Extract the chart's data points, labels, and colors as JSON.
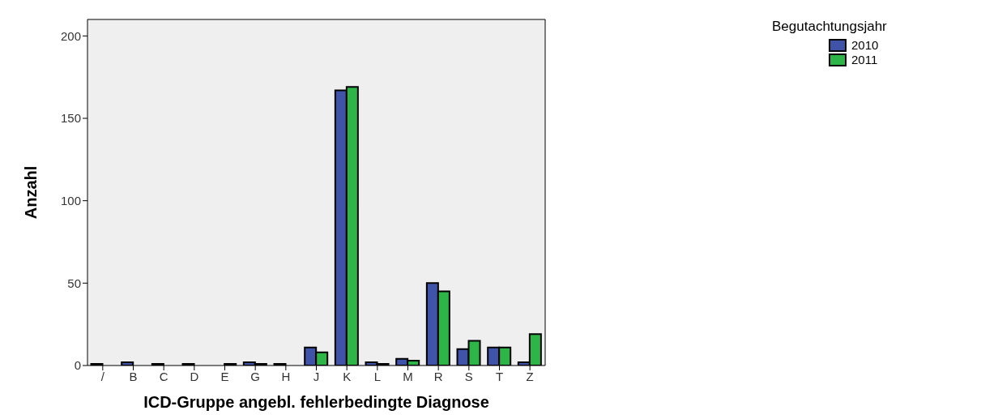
{
  "chart_data": {
    "type": "bar",
    "xlabel": "ICD-Gruppe angebl. fehlerbedingte Diagnose",
    "ylabel": "Anzahl",
    "legend_title": "Begutachtungsjahr",
    "categories": [
      "/",
      "B",
      "C",
      "D",
      "E",
      "G",
      "H",
      "J",
      "K",
      "L",
      "M",
      "R",
      "S",
      "T",
      "Z"
    ],
    "series": [
      {
        "name": "2010",
        "color": "#3f54a8",
        "values": [
          1,
          2,
          1,
          1,
          0,
          2,
          1,
          11,
          167,
          2,
          4,
          50,
          10,
          11,
          2
        ]
      },
      {
        "name": "2011",
        "color": "#2db548",
        "values": [
          0,
          0,
          0,
          0,
          1,
          1,
          0,
          8,
          169,
          1,
          3,
          45,
          15,
          11,
          19
        ]
      }
    ],
    "ylim": [
      0,
      210
    ],
    "yticks": [
      0,
      50,
      100,
      150,
      200
    ],
    "grid": false,
    "legend": "top right"
  }
}
